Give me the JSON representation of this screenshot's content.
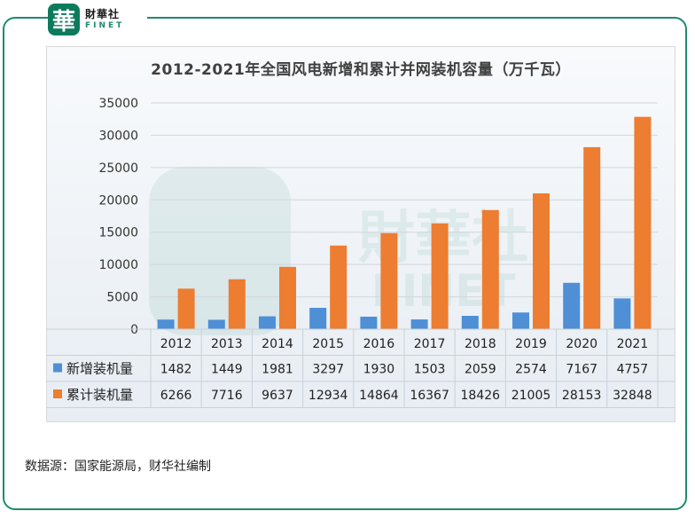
{
  "logo": {
    "glyph": "華",
    "name_cn": "財華社",
    "name_en": "FINET"
  },
  "watermark": {
    "glyph": "華",
    "text_cn": "財華社",
    "text_en": "FINET"
  },
  "source_text": "数据源：国家能源局，财华社编制",
  "colors": {
    "frame": "#1f8a6d",
    "new": "#4e8fd6",
    "cumulative": "#ed7d31"
  },
  "chart_data": {
    "type": "bar",
    "title": "2012-2021年全国风电新增和累计并网装机容量（万千瓦）",
    "categories": [
      "2012",
      "2013",
      "2014",
      "2015",
      "2016",
      "2017",
      "2018",
      "2019",
      "2020",
      "2021"
    ],
    "series": [
      {
        "name": "新增装机量",
        "values": [
          1482,
          1449,
          1981,
          3297,
          1930,
          1503,
          2059,
          2574,
          7167,
          4757
        ]
      },
      {
        "name": "累计装机量",
        "values": [
          6266,
          7716,
          9637,
          12934,
          14864,
          16367,
          18426,
          21005,
          28153,
          32848
        ]
      }
    ],
    "ylim": [
      0,
      35000
    ],
    "yticks": [
      0,
      5000,
      10000,
      15000,
      20000,
      25000,
      30000,
      35000
    ],
    "xlabel": "",
    "ylabel": "",
    "grid": true,
    "legend": "data table below chart"
  }
}
